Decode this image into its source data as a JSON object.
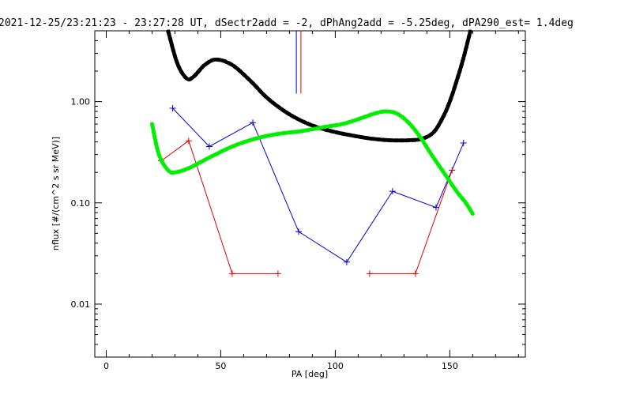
{
  "chart_data": {
    "type": "line",
    "title": "2021-12-25/23:21:23 - 23:27:28 UT, dSectr2add = -2, dPhAng2add = -5.25deg, dPA290_est=   1.4deg",
    "xlabel": "PA [deg]",
    "ylabel": "nflux [#/(cm^2 s sr MeV)]",
    "xlim": [
      -5,
      183
    ],
    "ylim": [
      0.003,
      5.0
    ],
    "yscale": "log",
    "grid": false,
    "x_ticks": [
      0,
      50,
      100,
      150
    ],
    "x_tick_labels": [
      "0",
      "50",
      "100",
      "150"
    ],
    "y_ticks": [
      0.01,
      0.1,
      1.0
    ],
    "y_tick_labels": [
      "0.01",
      "0.10",
      "1.00"
    ],
    "colors": {
      "red": "#dd0000",
      "blue": "#0000cc",
      "black": "#000000",
      "green": "#00ee00"
    },
    "series": [
      {
        "color": "blue",
        "style": "line+cross",
        "points": [
          [
            29,
            0.86
          ],
          [
            45,
            0.36
          ],
          [
            64,
            0.62
          ],
          [
            84,
            0.052
          ],
          [
            105,
            0.026
          ],
          [
            125,
            0.13
          ],
          [
            144,
            0.09
          ],
          [
            156,
            0.39
          ]
        ]
      },
      {
        "color": "red",
        "style": "line+cross",
        "segments": [
          [
            [
              24,
              0.26
            ],
            [
              36,
              0.41
            ],
            [
              55,
              0.02
            ],
            [
              75,
              0.02
            ]
          ],
          [
            [
              115,
              0.02
            ],
            [
              135,
              0.02
            ],
            [
              151,
              0.21
            ]
          ]
        ]
      },
      {
        "color": "black",
        "style": "thick-dotted",
        "points": [
          [
            27,
            5.0
          ],
          [
            31,
            2.4
          ],
          [
            35,
            1.7
          ],
          [
            38,
            1.75
          ],
          [
            43,
            2.3
          ],
          [
            48,
            2.6
          ],
          [
            55,
            2.3
          ],
          [
            63,
            1.6
          ],
          [
            70,
            1.1
          ],
          [
            78,
            0.8
          ],
          [
            85,
            0.65
          ],
          [
            92,
            0.56
          ],
          [
            100,
            0.5
          ],
          [
            108,
            0.46
          ],
          [
            116,
            0.43
          ],
          [
            124,
            0.415
          ],
          [
            132,
            0.415
          ],
          [
            138,
            0.43
          ],
          [
            143,
            0.5
          ],
          [
            147,
            0.7
          ],
          [
            150,
            1.0
          ],
          [
            153,
            1.6
          ],
          [
            156,
            2.7
          ],
          [
            159,
            5.0
          ]
        ]
      },
      {
        "color": "green",
        "style": "thick-dotted",
        "points": [
          [
            20,
            0.6
          ],
          [
            23,
            0.3
          ],
          [
            27,
            0.21
          ],
          [
            30,
            0.2
          ],
          [
            36,
            0.22
          ],
          [
            45,
            0.28
          ],
          [
            55,
            0.36
          ],
          [
            65,
            0.43
          ],
          [
            75,
            0.48
          ],
          [
            85,
            0.51
          ],
          [
            95,
            0.56
          ],
          [
            103,
            0.6
          ],
          [
            110,
            0.67
          ],
          [
            117,
            0.76
          ],
          [
            122,
            0.8
          ],
          [
            127,
            0.76
          ],
          [
            132,
            0.62
          ],
          [
            137,
            0.45
          ],
          [
            142,
            0.3
          ],
          [
            148,
            0.19
          ],
          [
            153,
            0.13
          ],
          [
            157,
            0.1
          ],
          [
            160,
            0.078
          ]
        ]
      },
      {
        "color": "blue",
        "style": "vertical-marker",
        "x": 83,
        "y_range": [
          1.2,
          5.0
        ]
      },
      {
        "color": "red",
        "style": "vertical-marker",
        "x": 85,
        "y_range": [
          1.2,
          5.0
        ]
      }
    ]
  }
}
